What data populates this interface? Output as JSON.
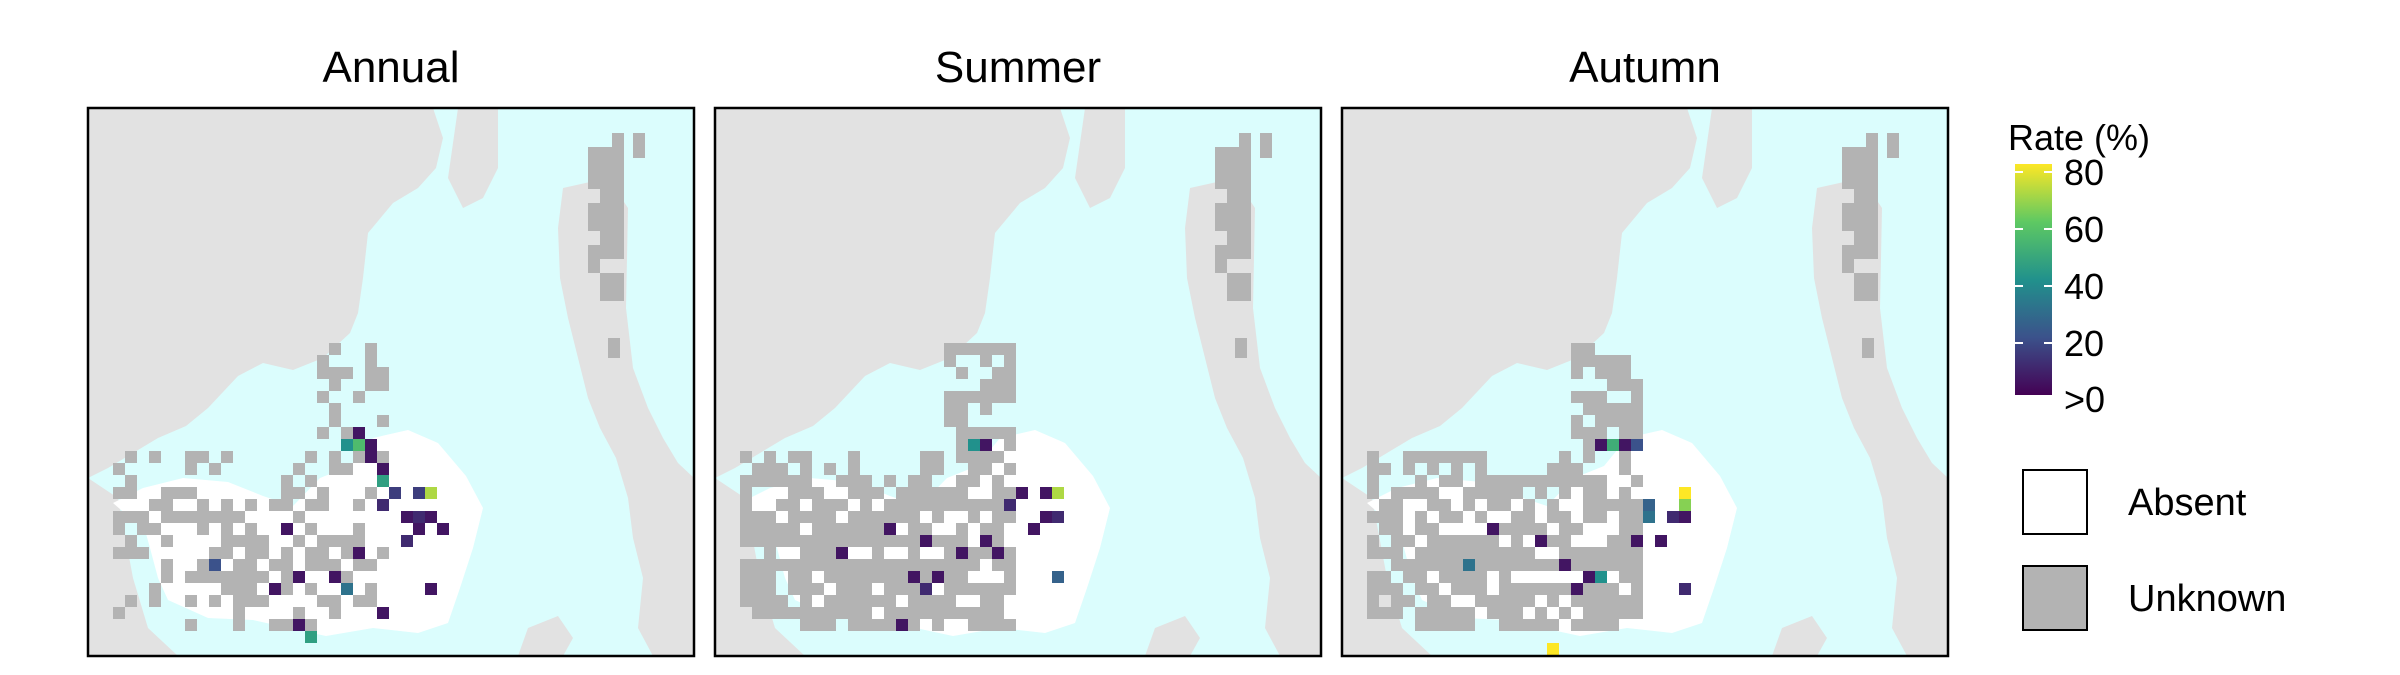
{
  "chart_data": {
    "type": "heatmap",
    "panels": [
      {
        "title": "Annual",
        "cells": [
          {
            "c": 20,
            "r": 17,
            "v": 5
          },
          {
            "c": 19,
            "r": 18,
            "v": 40
          },
          {
            "c": 20,
            "r": 18,
            "v": 55
          },
          {
            "c": 21,
            "r": 18,
            "v": 5
          },
          {
            "c": 21,
            "r": 19,
            "v": 5
          },
          {
            "c": 22,
            "r": 20,
            "v": 5
          },
          {
            "c": 22,
            "r": 21,
            "v": 45
          },
          {
            "c": 23,
            "r": 22,
            "v": 15
          },
          {
            "c": 25,
            "r": 22,
            "v": 15
          },
          {
            "c": 26,
            "r": 22,
            "v": 70
          },
          {
            "c": 22,
            "r": 23,
            "v": 10
          },
          {
            "c": 24,
            "r": 24,
            "v": 5
          },
          {
            "c": 25,
            "r": 24,
            "v": 10
          },
          {
            "c": 26,
            "r": 24,
            "v": 5
          },
          {
            "c": 14,
            "r": 25,
            "v": 5
          },
          {
            "c": 25,
            "r": 25,
            "v": 5
          },
          {
            "c": 27,
            "r": 25,
            "v": 5
          },
          {
            "c": 24,
            "r": 26,
            "v": 10
          },
          {
            "c": 20,
            "r": 27,
            "v": 5
          },
          {
            "c": 8,
            "r": 28,
            "v": 20
          },
          {
            "c": 15,
            "r": 29,
            "v": 5
          },
          {
            "c": 18,
            "r": 29,
            "v": 5
          },
          {
            "c": 13,
            "r": 30,
            "v": 5
          },
          {
            "c": 19,
            "r": 30,
            "v": 30
          },
          {
            "c": 26,
            "r": 30,
            "v": 5
          },
          {
            "c": 22,
            "r": 32,
            "v": 5
          },
          {
            "c": 15,
            "r": 33,
            "v": 5
          },
          {
            "c": 16,
            "r": 34,
            "v": 45
          }
        ]
      },
      {
        "title": "Summer",
        "cells": [
          {
            "c": 19,
            "r": 18,
            "v": 40
          },
          {
            "c": 20,
            "r": 18,
            "v": 5
          },
          {
            "c": 23,
            "r": 22,
            "v": 5
          },
          {
            "c": 25,
            "r": 22,
            "v": 5
          },
          {
            "c": 26,
            "r": 22,
            "v": 70
          },
          {
            "c": 22,
            "r": 23,
            "v": 10
          },
          {
            "c": 25,
            "r": 24,
            "v": 5
          },
          {
            "c": 26,
            "r": 24,
            "v": 10
          },
          {
            "c": 12,
            "r": 25,
            "v": 5
          },
          {
            "c": 24,
            "r": 25,
            "v": 5
          },
          {
            "c": 15,
            "r": 26,
            "v": 5
          },
          {
            "c": 20,
            "r": 26,
            "v": 5
          },
          {
            "c": 8,
            "r": 27,
            "v": 5
          },
          {
            "c": 18,
            "r": 27,
            "v": 5
          },
          {
            "c": 21,
            "r": 27,
            "v": 5
          },
          {
            "c": 14,
            "r": 29,
            "v": 5
          },
          {
            "c": 16,
            "r": 29,
            "v": 5
          },
          {
            "c": 15,
            "r": 30,
            "v": 10
          },
          {
            "c": 26,
            "r": 29,
            "v": 25
          },
          {
            "c": 13,
            "r": 33,
            "v": 5
          }
        ]
      },
      {
        "title": "Autumn",
        "cells": [
          {
            "c": 19,
            "r": 18,
            "v": 5
          },
          {
            "c": 20,
            "r": 18,
            "v": 50
          },
          {
            "c": 21,
            "r": 18,
            "v": 5
          },
          {
            "c": 22,
            "r": 18,
            "v": 20
          },
          {
            "c": 26,
            "r": 22,
            "v": 80
          },
          {
            "c": 26,
            "r": 23,
            "v": 65
          },
          {
            "c": 23,
            "r": 23,
            "v": 25
          },
          {
            "c": 23,
            "r": 24,
            "v": 30
          },
          {
            "c": 25,
            "r": 24,
            "v": 10
          },
          {
            "c": 26,
            "r": 24,
            "v": 5
          },
          {
            "c": 10,
            "r": 25,
            "v": 5
          },
          {
            "c": 14,
            "r": 26,
            "v": 5
          },
          {
            "c": 22,
            "r": 26,
            "v": 5
          },
          {
            "c": 24,
            "r": 26,
            "v": 5
          },
          {
            "c": 8,
            "r": 28,
            "v": 30
          },
          {
            "c": 16,
            "r": 28,
            "v": 5
          },
          {
            "c": 18,
            "r": 29,
            "v": 5
          },
          {
            "c": 19,
            "r": 29,
            "v": 40
          },
          {
            "c": 17,
            "r": 30,
            "v": 5
          },
          {
            "c": 26,
            "r": 30,
            "v": 10
          },
          {
            "c": 15,
            "r": 35,
            "v": 80
          }
        ]
      }
    ],
    "legend": {
      "title": "Rate (%)",
      "ticks": [
        80,
        60,
        40,
        20,
        ">0"
      ],
      "range": [
        0,
        80
      ],
      "colormap": "viridis",
      "categories": [
        {
          "label": "Absent",
          "color": "#ffffff"
        },
        {
          "label": "Unknown",
          "color": "#b3b3b3"
        }
      ]
    }
  },
  "colors": {
    "land": "#e2e2e2",
    "water": "#dbfdfd",
    "survey_absent": "#ffffff",
    "unknown": "#b3b3b3",
    "frame": "#000000"
  }
}
